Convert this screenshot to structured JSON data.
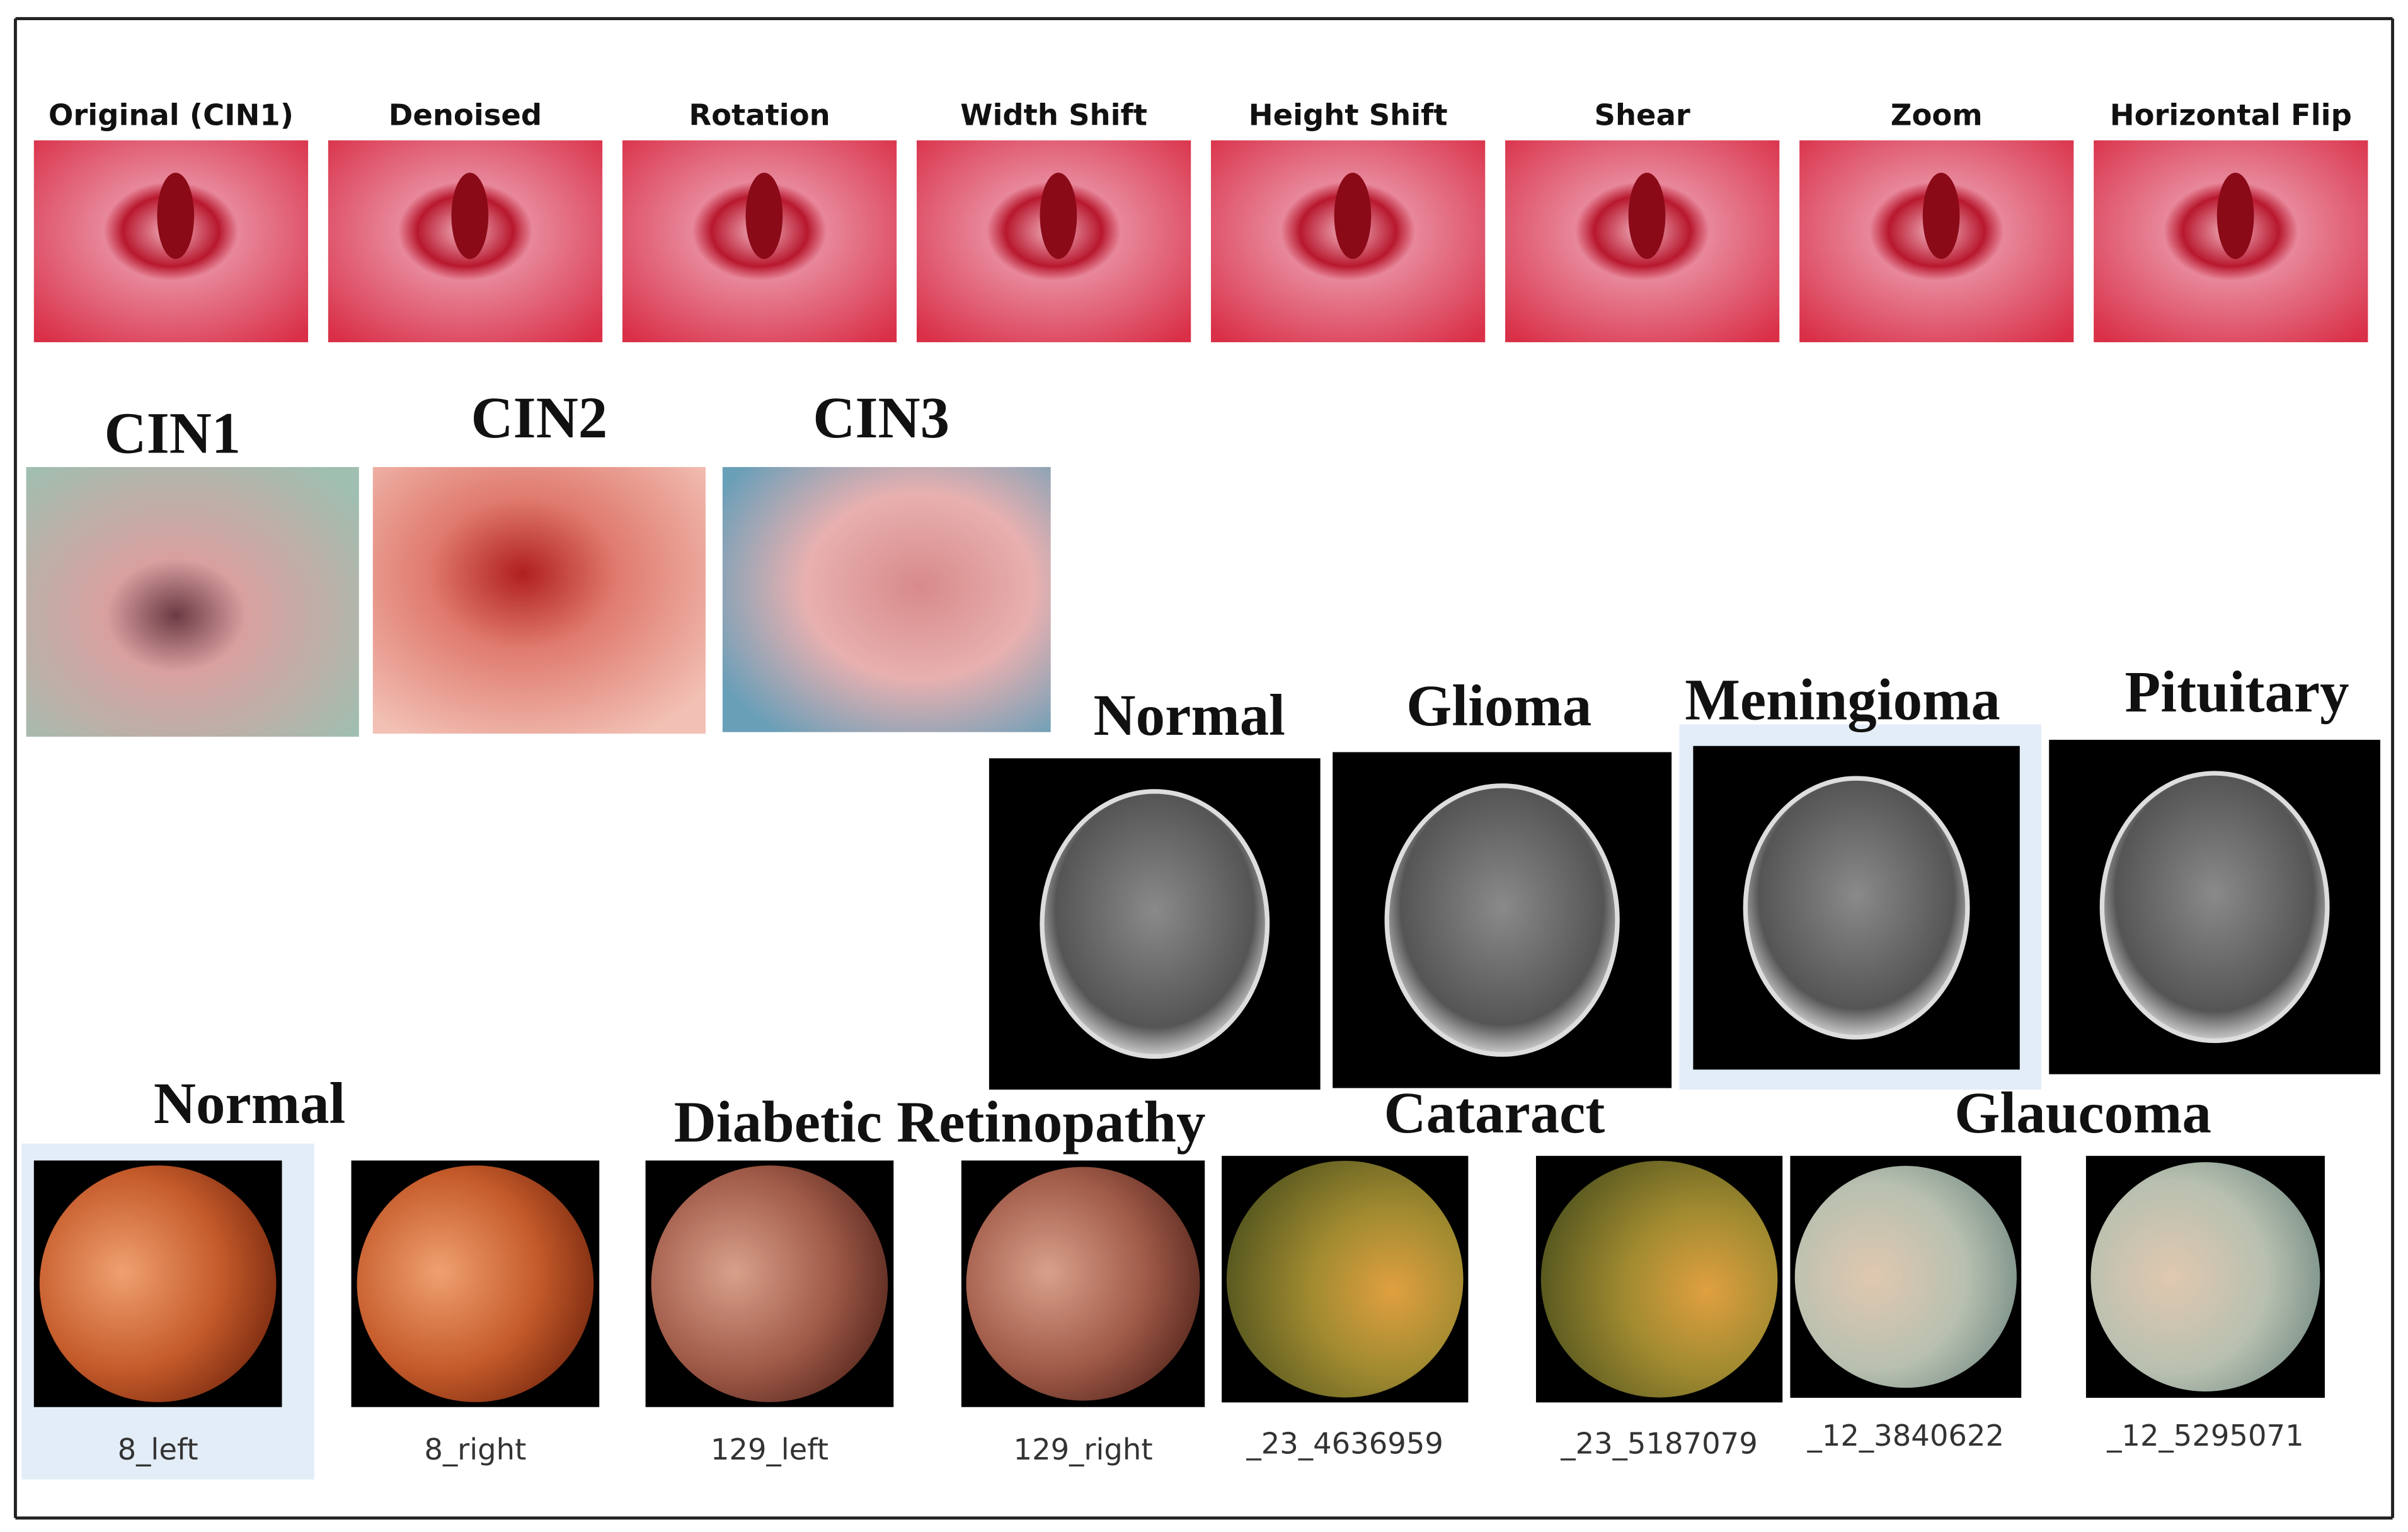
{
  "augmentation": {
    "labels": [
      "Original (CIN1)",
      "Denoised",
      "Rotation",
      "Width Shift",
      "Height Shift",
      "Shear",
      "Zoom",
      "Horizontal Flip"
    ]
  },
  "cervix": {
    "labels": [
      "CIN1",
      "CIN2",
      "CIN3"
    ]
  },
  "brain": {
    "labels": [
      "Normal",
      "Glioma",
      "Meningioma",
      "Pituitary"
    ]
  },
  "fundus": {
    "groups": [
      "Normal",
      "Diabetic Retinopathy",
      "Cataract",
      "Glaucoma"
    ],
    "files": [
      "8_left",
      "8_right",
      "129_left",
      "129_right",
      "_23_4636959",
      "_23_5187079",
      "_12_3840622",
      "_12_5295071"
    ]
  }
}
